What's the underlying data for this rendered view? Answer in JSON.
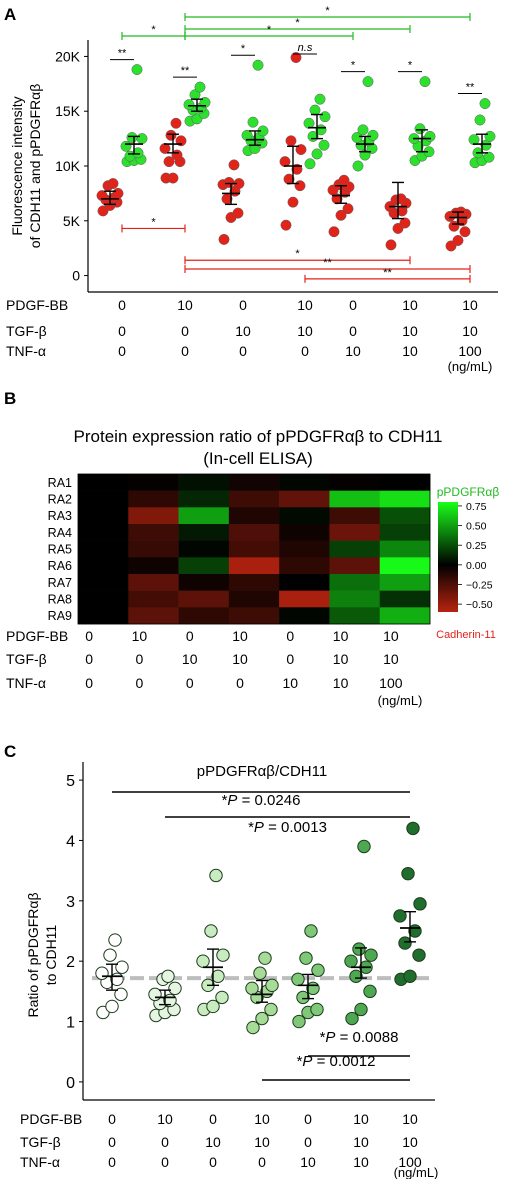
{
  "colors": {
    "red": "#e2231a",
    "green": "#2ee02e",
    "sig_green": "#22bb22",
    "sig_red": "#e2231a",
    "heat_low": "#b82310",
    "heat_mid": "#000000",
    "heat_high": "#19ff19",
    "ref_line": "#bdbdbd"
  },
  "conditions": {
    "row_labels": [
      "PDGF-BB",
      "TGF-β",
      "TNF-α"
    ],
    "values": [
      [
        "0",
        "10",
        "0",
        "10",
        "0",
        "10",
        "10"
      ],
      [
        "0",
        "0",
        "10",
        "10",
        "0",
        "10",
        "10"
      ],
      [
        "0",
        "0",
        "0",
        "0",
        "10",
        "10",
        "100"
      ]
    ],
    "unit": "(ng/mL)"
  },
  "chart_data": [
    {
      "panel": "A",
      "type": "scatter",
      "ylabel": [
        "Fluorescence intensity",
        "of CDH11 and pPDGFRαβ"
      ],
      "yticks": [
        "0",
        "5K",
        "10K",
        "15K",
        "20K"
      ],
      "ylim": [
        -1500,
        21500
      ],
      "series": [
        {
          "color": "red",
          "groups": [
            {
              "points": [
                5900,
                6400,
                6700,
                6900,
                7100,
                7300,
                7500,
                8200,
                8400
              ],
              "mean": 7000,
              "sem_lo": 6500,
              "sem_hi": 7700
            },
            {
              "points": [
                8900,
                8900,
                10400,
                10400,
                11000,
                11600,
                12300,
                12800,
                13900
              ],
              "mean": 12000,
              "sem_lo": 11200,
              "sem_hi": 12900
            },
            {
              "points": [
                3300,
                5300,
                5700,
                7000,
                7700,
                8300,
                8400,
                8500,
                10100
              ],
              "mean": 7500,
              "sem_lo": 6500,
              "sem_hi": 8400
            },
            {
              "points": [
                4600,
                6700,
                8200,
                8800,
                9700,
                10400,
                11500,
                12300,
                19900
              ],
              "mean": 10000,
              "sem_lo": 8400,
              "sem_hi": 11800
            },
            {
              "points": [
                4000,
                5500,
                6100,
                7000,
                7600,
                7800,
                8100,
                8300,
                8700
              ],
              "mean": 7300,
              "sem_lo": 6600,
              "sem_hi": 8200
            },
            {
              "points": [
                2800,
                4300,
                4800,
                5700,
                5900,
                6300,
                6600,
                6900,
                7000
              ],
              "mean": 6300,
              "sem_lo": 5200,
              "sem_hi": 8500
            },
            {
              "points": [
                2700,
                3200,
                4000,
                4500,
                5000,
                5400,
                5600,
                5700,
                5800
              ],
              "mean": 5300,
              "sem_lo": 4700,
              "sem_hi": 5800
            }
          ]
        },
        {
          "color": "green",
          "groups": [
            {
              "points": [
                10400,
                10500,
                10600,
                10900,
                11200,
                11800,
                12500,
                12600,
                18800
              ],
              "mean": 12000,
              "sem_lo": 11100,
              "sem_hi": 12700
            },
            {
              "points": [
                14100,
                14300,
                14800,
                15100,
                15300,
                15600,
                15800,
                16500,
                17200
              ],
              "mean": 15500,
              "sem_lo": 15000,
              "sem_hi": 16100
            },
            {
              "points": [
                11400,
                11600,
                12100,
                12300,
                12600,
                12800,
                13200,
                14000,
                19200
              ],
              "mean": 12400,
              "sem_lo": 11900,
              "sem_hi": 13200
            },
            {
              "points": [
                10200,
                11100,
                11900,
                12700,
                13300,
                13900,
                14500,
                15100,
                16100
              ],
              "mean": 13500,
              "sem_lo": 12500,
              "sem_hi": 14700
            },
            {
              "points": [
                10000,
                11000,
                11600,
                11900,
                12300,
                12600,
                12800,
                13300,
                17700
              ],
              "mean": 12000,
              "sem_lo": 11300,
              "sem_hi": 12700
            },
            {
              "points": [
                10500,
                10900,
                11300,
                11800,
                12300,
                12500,
                12700,
                13400,
                17700
              ],
              "mean": 12500,
              "sem_lo": 11300,
              "sem_hi": 13300
            },
            {
              "points": [
                10300,
                10500,
                10800,
                11200,
                11900,
                12400,
                12700,
                14200,
                15700
              ],
              "mean": 12000,
              "sem_lo": 11200,
              "sem_hi": 12900
            }
          ]
        }
      ],
      "pair_sig": [
        "**",
        "**",
        "*",
        "n.s",
        "*",
        "*",
        "**"
      ],
      "brackets": [
        {
          "color": "green",
          "from": 1,
          "to": 2,
          "y": 21200,
          "label": "*"
        },
        {
          "color": "green",
          "from": 2,
          "to": 7,
          "y": 23000,
          "label": "*"
        },
        {
          "color": "green",
          "from": 2,
          "to": 6,
          "y": 22000,
          "label": "*"
        },
        {
          "color": "green",
          "from": 2,
          "to": 5,
          "y": 21200,
          "label": "*"
        },
        {
          "color": "red",
          "from": 1,
          "to": 2,
          "y": 4300,
          "label": "*"
        },
        {
          "color": "red",
          "from": 2,
          "to": 6,
          "y": 1400,
          "label": "*"
        },
        {
          "color": "red",
          "from": 2,
          "to": 7,
          "y": 600,
          "label": "**"
        },
        {
          "color": "red",
          "from": 4,
          "to": 7,
          "y": -300,
          "label": "**"
        }
      ]
    },
    {
      "panel": "B",
      "type": "heatmap",
      "title": [
        "Protein expression ratio of pPDGFRαβ to CDH11",
        "(In-cell ELISA)"
      ],
      "rows": [
        "RA1",
        "RA2",
        "RA3",
        "RA4",
        "RA5",
        "RA6",
        "RA7",
        "RA8",
        "RA9"
      ],
      "values": [
        [
          0.0,
          -0.02,
          0.05,
          -0.06,
          0.02,
          -0.02,
          0.0
        ],
        [
          0.0,
          -0.15,
          0.12,
          -0.2,
          -0.32,
          0.6,
          0.7
        ],
        [
          0.0,
          -0.42,
          0.5,
          -0.1,
          0.03,
          -0.2,
          0.25
        ],
        [
          0.0,
          -0.2,
          0.08,
          -0.25,
          -0.05,
          -0.35,
          0.2
        ],
        [
          0.0,
          -0.18,
          0.02,
          -0.22,
          -0.1,
          0.2,
          0.42
        ],
        [
          0.0,
          -0.05,
          0.2,
          -0.55,
          -0.15,
          -0.3,
          0.78
        ],
        [
          0.0,
          -0.3,
          -0.05,
          -0.15,
          0.0,
          0.35,
          0.5
        ],
        [
          0.0,
          -0.22,
          -0.3,
          -0.1,
          -0.55,
          0.4,
          0.15
        ],
        [
          0.0,
          -0.3,
          -0.15,
          -0.2,
          0.02,
          0.28,
          0.55
        ]
      ],
      "scale": {
        "ticks": [
          "0.75",
          "0.50",
          "0.25",
          "0.00",
          "−0.25",
          "−0.50"
        ],
        "tick_values": [
          0.75,
          0.5,
          0.25,
          0.0,
          -0.25,
          -0.5
        ],
        "range": [
          -0.6,
          0.8
        ],
        "top_label": "pPDGFRαβ",
        "bottom_label": "Cadherin-11"
      }
    },
    {
      "panel": "C",
      "type": "scatter",
      "title": "pPDGFRαβ/CDH11",
      "ylabel": [
        "Ratio of pPDGFRαβ",
        "to CDH11"
      ],
      "yticks": [
        "0",
        "1",
        "2",
        "3",
        "4",
        "5"
      ],
      "ylim": [
        -0.3,
        5.3
      ],
      "reference_line": 1.72,
      "fills": [
        "#ffffff",
        "#e6f5e1",
        "#c8ecbf",
        "#a6dc98",
        "#7ec878",
        "#4ea852",
        "#1f6e2e"
      ],
      "groups": [
        {
          "points": [
            1.15,
            1.25,
            1.45,
            1.65,
            1.7,
            1.8,
            1.9,
            2.1,
            2.35
          ],
          "mean": 1.75,
          "sem_lo": 1.52,
          "sem_hi": 1.95
        },
        {
          "points": [
            1.1,
            1.15,
            1.2,
            1.3,
            1.35,
            1.45,
            1.55,
            1.7,
            1.75
          ],
          "mean": 1.4,
          "sem_lo": 1.28,
          "sem_hi": 1.52
        },
        {
          "points": [
            1.2,
            1.25,
            1.4,
            1.6,
            1.75,
            2.0,
            2.1,
            2.5,
            3.42
          ],
          "mean": 1.9,
          "sem_lo": 1.6,
          "sem_hi": 2.2
        },
        {
          "points": [
            0.9,
            1.05,
            1.2,
            1.4,
            1.5,
            1.55,
            1.6,
            1.8,
            2.05
          ],
          "mean": 1.45,
          "sem_lo": 1.32,
          "sem_hi": 1.68
        },
        {
          "points": [
            1.0,
            1.15,
            1.2,
            1.4,
            1.55,
            1.7,
            1.85,
            2.05,
            2.5
          ],
          "mean": 1.6,
          "sem_lo": 1.38,
          "sem_hi": 1.78
        },
        {
          "points": [
            1.05,
            1.2,
            1.5,
            1.75,
            1.9,
            2.0,
            2.1,
            2.2,
            3.9
          ],
          "mean": 1.9,
          "sem_lo": 1.72,
          "sem_hi": 2.22
        },
        {
          "points": [
            1.7,
            1.75,
            2.1,
            2.3,
            2.5,
            2.75,
            2.95,
            3.45,
            4.2
          ],
          "mean": 2.55,
          "sem_lo": 2.32,
          "sem_hi": 2.82
        }
      ],
      "brackets": [
        {
          "from": 1,
          "to": 7,
          "y": 4.78,
          "label": "*P = 0.0246"
        },
        {
          "from": 2,
          "to": 7,
          "y": 4.55,
          "label": "*P = 0.0013"
        },
        {
          "from": 5,
          "to": 7,
          "y": 0.85,
          "label": "*P = 0.0088"
        },
        {
          "from": 4,
          "to": 7,
          "y": 0.58,
          "label": "*P = 0.0012"
        }
      ]
    }
  ]
}
